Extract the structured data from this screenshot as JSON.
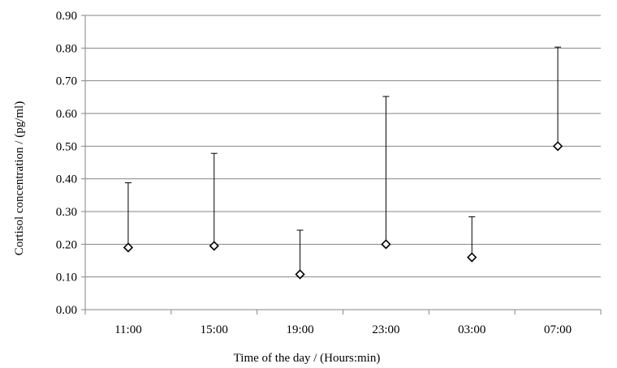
{
  "chart_data": {
    "type": "scatter",
    "xlabel": "Time of the day / (Hours:min)",
    "ylabel": "Cortisol concentration / (pg/ml)",
    "ylim": [
      0,
      0.9
    ],
    "y_ticks": [
      "0.00",
      "0.10",
      "0.20",
      "0.30",
      "0.40",
      "0.50",
      "0.60",
      "0.70",
      "0.80",
      "0.90"
    ],
    "grid": true,
    "marker": "diamond",
    "categories": [
      "11:00",
      "15:00",
      "19:00",
      "23:00",
      "03:00",
      "07:00"
    ],
    "values": [
      0.19,
      0.195,
      0.108,
      0.2,
      0.16,
      0.5
    ],
    "error_upper": [
      0.388,
      0.478,
      0.243,
      0.652,
      0.284,
      0.803
    ]
  }
}
